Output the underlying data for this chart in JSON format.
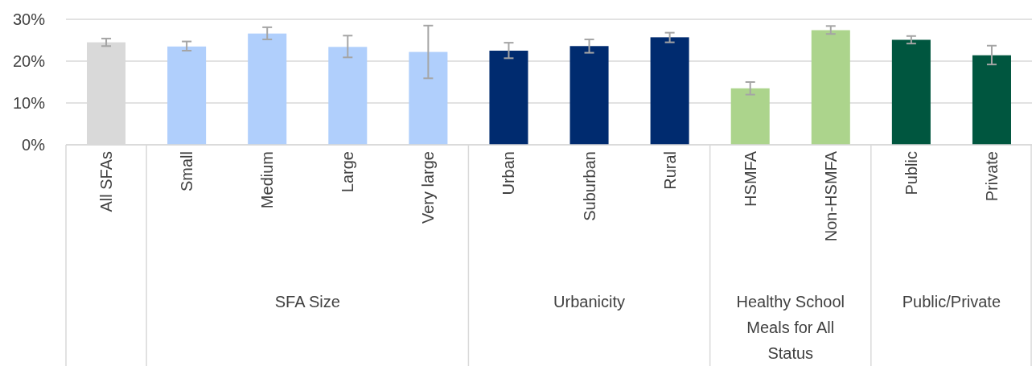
{
  "chart_data": {
    "type": "bar",
    "categories": [
      "All SFAs",
      "Small",
      "Medium",
      "Large",
      "Very large",
      "Urban",
      "Suburban",
      "Rural",
      "HSMFA",
      "Non-HSMFA",
      "Public",
      "Private"
    ],
    "values": [
      24.5,
      23.5,
      26.6,
      23.4,
      22.2,
      22.5,
      23.6,
      25.7,
      13.5,
      27.4,
      25.1,
      21.4
    ],
    "colors": [
      "#d9d9d9",
      "#b0cffc",
      "#b0cffc",
      "#b0cffc",
      "#b0cffc",
      "#002b6f",
      "#002b6f",
      "#002b6f",
      "#acd48c",
      "#acd48c",
      "#00563f",
      "#00563f"
    ],
    "errors": [
      [
        23.6,
        25.4
      ],
      [
        22.5,
        24.7
      ],
      [
        25.2,
        28.1
      ],
      [
        20.9,
        26.1
      ],
      [
        15.9,
        28.5
      ],
      [
        20.7,
        24.4
      ],
      [
        22.0,
        25.2
      ],
      [
        24.5,
        26.8
      ],
      [
        12.0,
        15.0
      ],
      [
        26.5,
        28.4
      ],
      [
        24.2,
        26.0
      ],
      [
        19.2,
        23.7
      ]
    ],
    "ylim": [
      0,
      30
    ],
    "yticks": [
      {
        "value": 0,
        "label": "0%"
      },
      {
        "value": 10,
        "label": "10%"
      },
      {
        "value": 20,
        "label": "20%"
      },
      {
        "value": 30,
        "label": "30%"
      }
    ],
    "grid": "y",
    "annotations": [
      "SFA Size",
      "Urbanicity",
      "Healthy School Meals for All Status",
      "Public/Private"
    ]
  }
}
